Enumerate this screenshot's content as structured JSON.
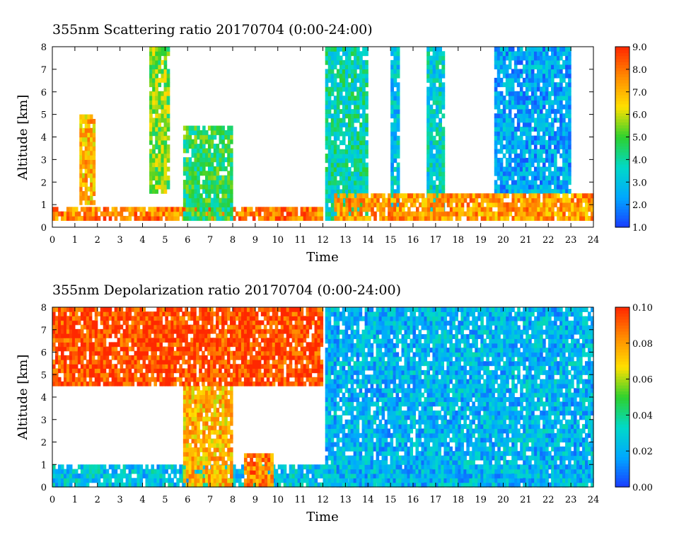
{
  "chart_data": [
    {
      "type": "heatmap",
      "title": "355nm Scattering ratio  20170704 (0:00-24:00)",
      "xlabel": "Time",
      "ylabel": "Altitude [km]",
      "xlim": [
        0,
        24
      ],
      "ylim": [
        0,
        8
      ],
      "x_ticks": [
        "0",
        "1",
        "2",
        "3",
        "4",
        "5",
        "6",
        "7",
        "8",
        "9",
        "10",
        "11",
        "12",
        "13",
        "14",
        "15",
        "16",
        "17",
        "18",
        "19",
        "20",
        "21",
        "22",
        "23",
        "24"
      ],
      "y_ticks": [
        "0",
        "1",
        "2",
        "3",
        "4",
        "5",
        "6",
        "7",
        "8"
      ],
      "colorbar": {
        "range": [
          1.0,
          9.0
        ],
        "tick_labels": [
          "1.0",
          "2.0",
          "3.0",
          "4.0",
          "5.0",
          "6.0",
          "7.0",
          "8.0",
          "9.0"
        ]
      },
      "features": [
        {
          "time": [
            0,
            12
          ],
          "alt": [
            0.3,
            0.9
          ],
          "level": 0.85
        },
        {
          "time": [
            1.2,
            1.9
          ],
          "alt": [
            1.0,
            5.0
          ],
          "level": 0.75
        },
        {
          "time": [
            4.3,
            5.2
          ],
          "alt": [
            1.5,
            8.0
          ],
          "level": 0.55
        },
        {
          "time": [
            5.8,
            8.0
          ],
          "alt": [
            0.3,
            4.5
          ],
          "level": 0.45
        },
        {
          "time": [
            12.1,
            14.0
          ],
          "alt": [
            0.3,
            8.0
          ],
          "level": 0.35
        },
        {
          "time": [
            15.0,
            15.4
          ],
          "alt": [
            0.5,
            8.0
          ],
          "level": 0.25
        },
        {
          "time": [
            16.6,
            17.4
          ],
          "alt": [
            0.5,
            8.0
          ],
          "level": 0.3
        },
        {
          "time": [
            19.6,
            23.0
          ],
          "alt": [
            1.5,
            8.0
          ],
          "level": 0.18
        },
        {
          "time": [
            12.5,
            24.0
          ],
          "alt": [
            0.3,
            1.5
          ],
          "level": 0.8
        }
      ],
      "colors": [
        "#1a3cff",
        "#00a8ff",
        "#00d9c8",
        "#2ed12e",
        "#ffe000",
        "#ff8c00",
        "#ff2800"
      ]
    },
    {
      "type": "heatmap",
      "title": "355nm Depolarization ratio  20170704 (0:00-24:00)",
      "xlabel": "Time",
      "ylabel": "Altitude [km]",
      "xlim": [
        0,
        24
      ],
      "ylim": [
        0,
        8
      ],
      "x_ticks": [
        "0",
        "1",
        "2",
        "3",
        "4",
        "5",
        "6",
        "7",
        "8",
        "9",
        "10",
        "11",
        "12",
        "13",
        "14",
        "15",
        "16",
        "17",
        "18",
        "19",
        "20",
        "21",
        "22",
        "23",
        "24"
      ],
      "y_ticks": [
        "0",
        "1",
        "2",
        "3",
        "4",
        "5",
        "6",
        "7",
        "8"
      ],
      "colorbar": {
        "range": [
          0.0,
          0.1
        ],
        "tick_labels": [
          "0.00",
          "0.02",
          "0.04",
          "0.06",
          "0.08",
          "0.10"
        ]
      },
      "features": [
        {
          "time": [
            0,
            24
          ],
          "alt": [
            0,
            1.0
          ],
          "level": 0.25
        },
        {
          "time": [
            5.8,
            8.0
          ],
          "alt": [
            0,
            4.5
          ],
          "level": 0.75
        },
        {
          "time": [
            8.5,
            9.8
          ],
          "alt": [
            0,
            1.5
          ],
          "level": 0.85
        },
        {
          "time": [
            12.1,
            24.0
          ],
          "alt": [
            0,
            8.0
          ],
          "level": 0.22
        },
        {
          "time": [
            0,
            12.0
          ],
          "alt": [
            4.5,
            8.0
          ],
          "level": 0.95
        }
      ],
      "colors": [
        "#1a3cff",
        "#00a8ff",
        "#00d9c8",
        "#2ed12e",
        "#ffe000",
        "#ff8c00",
        "#ff2800"
      ]
    }
  ]
}
